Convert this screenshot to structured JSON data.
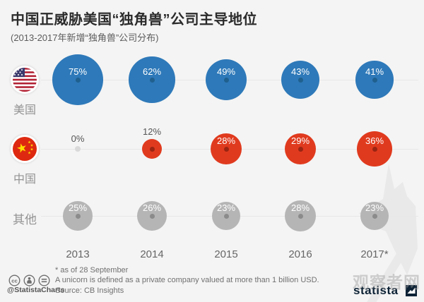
{
  "header": {
    "title": "中国正威胁美国“独角兽”公司主导地位",
    "subtitle": "(2013-2017年新增“独角兽”公司分布)"
  },
  "chart_data": {
    "type": "bubble",
    "unit": "%",
    "categories": [
      "2013",
      "2014",
      "2015",
      "2016",
      "2017*"
    ],
    "series": [
      {
        "name": "美国",
        "flag": "usa",
        "color": "#2e79b9",
        "dot_color": "#1f608f",
        "values": [
          75,
          62,
          49,
          43,
          41
        ]
      },
      {
        "name": "中国",
        "flag": "china",
        "color": "#e03a1e",
        "dot_color": "#9a2513",
        "values": [
          0,
          12,
          28,
          29,
          36
        ]
      },
      {
        "name": "其他",
        "flag": null,
        "color": "#b5b5b5",
        "dot_color": "#8b8b8b",
        "values": [
          25,
          26,
          23,
          28,
          23
        ]
      }
    ],
    "value_range": [
      0,
      100
    ],
    "bubble_area_proportional": true,
    "zero_marker_color": "#d9d9d9",
    "row_line_color": "#e7e7e7"
  },
  "footer": {
    "note1": "* as of 28 September",
    "note2": "A unicorn is defined as a private company valued at more than 1 billion USD.",
    "source": "Source: CB Insights",
    "credit": "@StatistaCharts",
    "license_icons": [
      "cc-icon",
      "attribution-icon",
      "equal-icon"
    ],
    "logo_text": "statista"
  },
  "watermark": {
    "text": "观察者网"
  },
  "colors": {
    "background": "#f4f4f4",
    "title": "#2b2b2b",
    "subtitle": "#5c5c5c",
    "usa_blue": "#2e79b9",
    "china_red": "#e03a1e",
    "other_gray": "#b5b5b5",
    "logo_navy": "#0d2235"
  }
}
